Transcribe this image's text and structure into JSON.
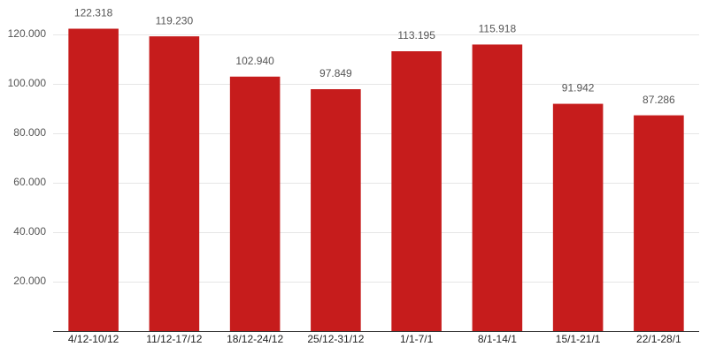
{
  "chart_data": {
    "type": "bar",
    "categories": [
      "4/12-10/12",
      "11/12-17/12",
      "18/12-24/12",
      "25/12-31/12",
      "1/1-7/1",
      "8/1-14/1",
      "15/1-21/1",
      "22/1-28/1"
    ],
    "values": [
      122318,
      119230,
      102940,
      97849,
      113195,
      115918,
      91942,
      87286
    ],
    "value_labels": [
      "122.318",
      "119.230",
      "102.940",
      "97.849",
      "113.195",
      "115.918",
      "91.942",
      "87.286"
    ],
    "color": "#c61c1c",
    "ylim": [
      0,
      130000
    ],
    "yticks": [
      {
        "value": 20000,
        "label": "20.000"
      },
      {
        "value": 40000,
        "label": "40.000"
      },
      {
        "value": 60000,
        "label": "60.000"
      },
      {
        "value": 80000,
        "label": "80.000"
      },
      {
        "value": 100000,
        "label": "100.000"
      },
      {
        "value": 120000,
        "label": "120.000"
      }
    ],
    "grid": true
  }
}
